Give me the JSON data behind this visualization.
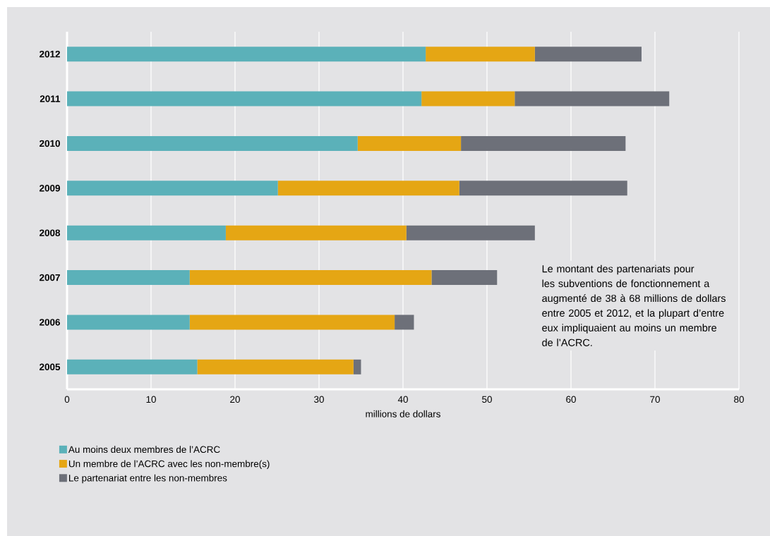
{
  "chart_data": {
    "type": "bar",
    "orientation": "horizontal",
    "stacked": true,
    "categories": [
      "2012",
      "2011",
      "2010",
      "2009",
      "2008",
      "2007",
      "2006",
      "2005"
    ],
    "series": [
      {
        "name": "Au moins deux membres de l’ACRC",
        "color": "#5bb1b9",
        "values": [
          42.7,
          42.2,
          34.6,
          25.1,
          18.9,
          14.6,
          14.6,
          15.5
        ]
      },
      {
        "name": "Un membre de l’ACRC avec les non-membre(s)",
        "color": "#e5a614",
        "values": [
          13.0,
          11.1,
          12.3,
          21.6,
          21.5,
          28.8,
          24.4,
          18.6
        ]
      },
      {
        "name": "Le partenariat entre les non-membres",
        "color": "#6d7079",
        "values": [
          12.7,
          18.4,
          19.6,
          20.0,
          15.3,
          7.8,
          2.3,
          0.9
        ]
      }
    ],
    "xlabel": "millions de dollars",
    "xlim": [
      0,
      80
    ],
    "xticks": [
      0,
      10,
      20,
      30,
      40,
      50,
      60,
      70,
      80
    ],
    "grid": "x",
    "legend": "bottom",
    "annotations": [
      "Le montant des partenariats pour les subventions de fonctionnement a augmenté de 38 à 68 millions de dollars entre 2005 et 2012, et la plupart d’entre eux impliquaient au moins un membre de l’ACRC."
    ]
  }
}
